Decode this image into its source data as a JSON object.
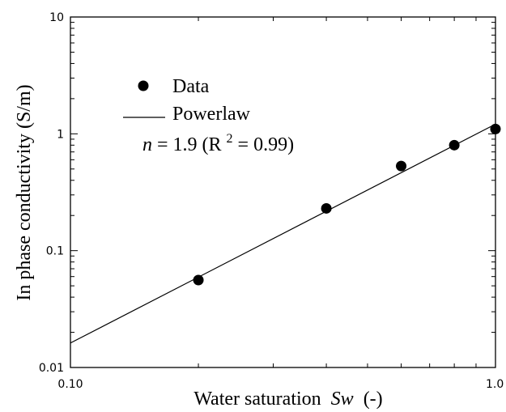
{
  "chart_data": {
    "type": "scatter",
    "xlabel": "Water saturation",
    "xlabel_var": "Sw",
    "xlabel_unit": "(-)",
    "ylabel": "In phase conductivity (S/m)",
    "x_scale": "log",
    "y_scale": "log",
    "xlim": [
      0.1,
      1.0
    ],
    "ylim": [
      0.01,
      10
    ],
    "x_ticks": [
      {
        "value": 0.1,
        "label": "0.10"
      },
      {
        "value": 1.0,
        "label": "1.0"
      }
    ],
    "y_ticks": [
      {
        "value": 0.01,
        "label": "0.01"
      },
      {
        "value": 0.1,
        "label": "0.1"
      },
      {
        "value": 1,
        "label": "1"
      },
      {
        "value": 10,
        "label": "10"
      }
    ],
    "series": [
      {
        "name": "Data",
        "kind": "points",
        "x": [
          0.2,
          0.4,
          0.6,
          0.8,
          1.0
        ],
        "y": [
          0.056,
          0.23,
          0.53,
          0.8,
          1.1
        ]
      },
      {
        "name": "Powerlaw",
        "kind": "line",
        "x": [
          0.1,
          1.0
        ],
        "y": [
          0.0162,
          1.21
        ]
      }
    ],
    "annotation": {
      "var": "n",
      "text_before_sup": " = 1.9 (R",
      "sup": "2",
      "text_after_sup": "= 0.99)"
    },
    "legend_placement": "top-left",
    "grid": false
  }
}
